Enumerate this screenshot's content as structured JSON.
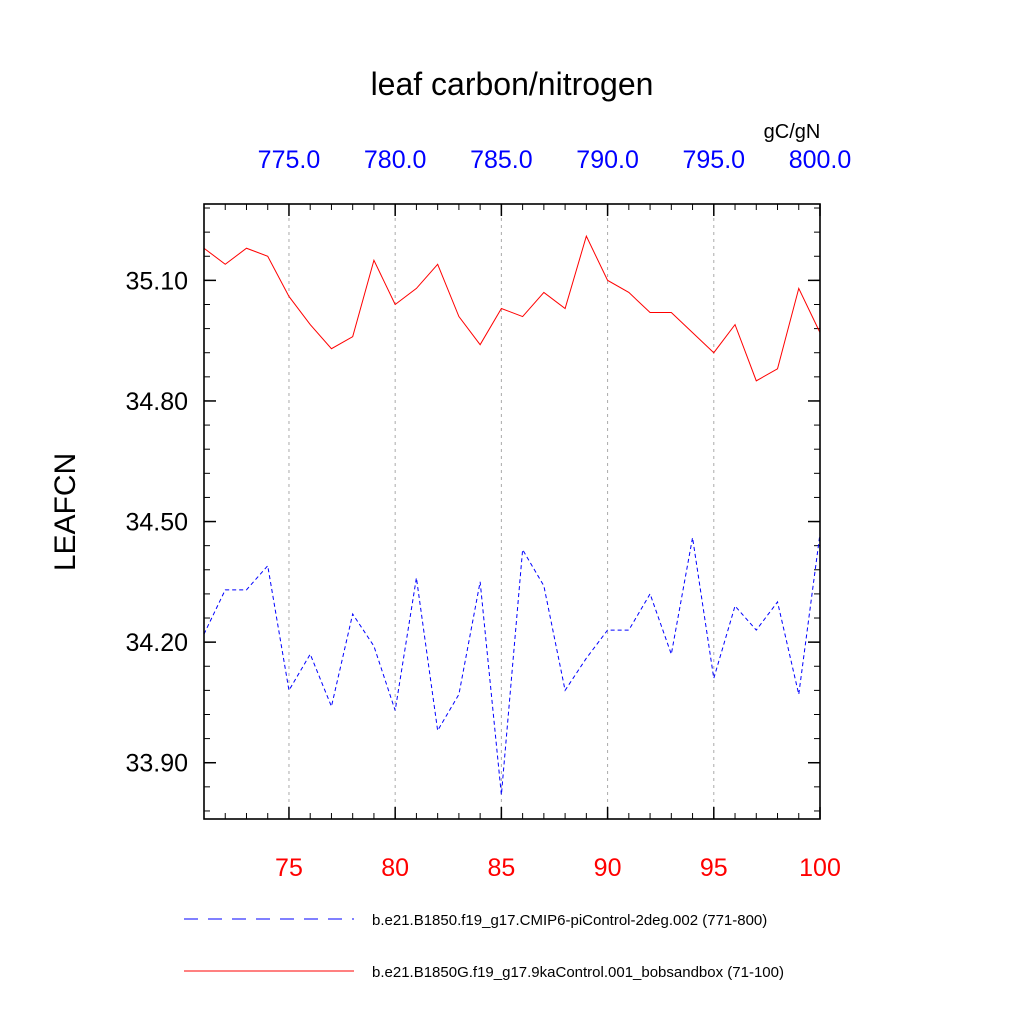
{
  "chart_data": {
    "type": "line",
    "title": "leaf carbon/nitrogen",
    "ylabel": "LEAFCN",
    "units_label": "gC/gN",
    "bottom_axis": {
      "range": [
        71,
        100
      ],
      "ticks": [
        75,
        80,
        85,
        90,
        95,
        100
      ],
      "tick_labels": [
        "75",
        "80",
        "85",
        "90",
        "95",
        "100"
      ],
      "color": "#ff0000"
    },
    "top_axis": {
      "range": [
        771,
        800
      ],
      "ticks": [
        775,
        780,
        785,
        790,
        795,
        800
      ],
      "tick_labels": [
        "775.0",
        "780.0",
        "785.0",
        "790.0",
        "795.0",
        "800.0"
      ],
      "color": "#0000ff"
    },
    "y_axis": {
      "range": [
        33.76,
        35.29
      ],
      "ticks": [
        33.9,
        34.2,
        34.5,
        34.8,
        35.1
      ],
      "tick_labels": [
        "33.90",
        "34.20",
        "34.50",
        "34.80",
        "35.10"
      ]
    },
    "gridlines": "vertical dashed at major ticks",
    "series": [
      {
        "name": "b.e21.B1850G.f19_g17.9kaControl.001_bobsandbox (71-100)",
        "style": "solid",
        "color": "#ff0000",
        "x_axis": "bottom",
        "x": [
          71,
          72,
          73,
          74,
          75,
          76,
          77,
          78,
          79,
          80,
          81,
          82,
          83,
          84,
          85,
          86,
          87,
          88,
          89,
          90,
          91,
          92,
          93,
          94,
          95,
          96,
          97,
          98,
          99,
          100
        ],
        "values": [
          35.18,
          35.14,
          35.18,
          35.16,
          35.06,
          34.99,
          34.93,
          34.96,
          35.15,
          35.04,
          35.08,
          35.14,
          35.01,
          34.94,
          35.03,
          35.01,
          35.07,
          35.03,
          35.21,
          35.1,
          35.07,
          35.02,
          35.02,
          34.97,
          34.92,
          34.99,
          34.85,
          34.88,
          35.08,
          34.97
        ]
      },
      {
        "name": "b.e21.B1850.f19_g17.CMIP6-piControl-2deg.002 (771-800)",
        "style": "dashed",
        "color": "#0000ff",
        "x_axis": "top",
        "x": [
          771,
          772,
          773,
          774,
          775,
          776,
          777,
          778,
          779,
          780,
          781,
          782,
          783,
          784,
          785,
          786,
          787,
          788,
          789,
          790,
          791,
          792,
          793,
          794,
          795,
          796,
          797,
          798,
          799,
          800
        ],
        "values": [
          34.22,
          34.33,
          34.33,
          34.39,
          34.08,
          34.17,
          34.04,
          34.27,
          34.19,
          34.03,
          34.36,
          33.98,
          34.07,
          34.35,
          33.82,
          34.43,
          34.34,
          34.08,
          34.16,
          34.23,
          34.23,
          34.32,
          34.17,
          34.46,
          34.11,
          34.29,
          34.23,
          34.3,
          34.07,
          34.47
        ]
      }
    ],
    "legend": {
      "placement": "bottom",
      "order": [
        1,
        0
      ]
    }
  }
}
